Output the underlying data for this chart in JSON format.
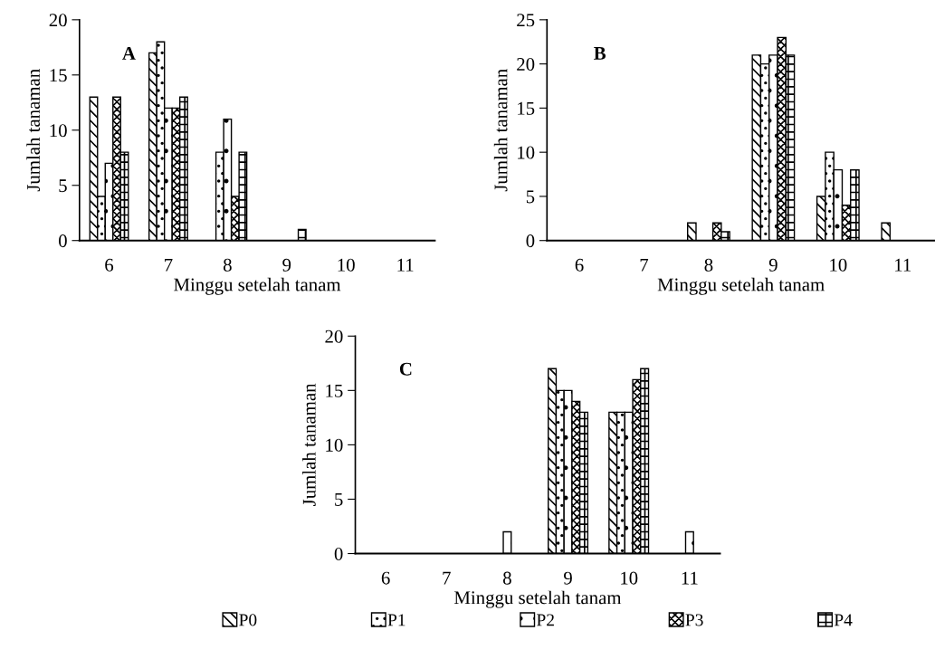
{
  "chart_data": [
    {
      "type": "bar",
      "xlabel": "Minggu setelah tanam",
      "ylabel": "Jumlah tanaman",
      "annotations": [
        "A"
      ],
      "categories": [
        "6",
        "7",
        "8",
        "9",
        "10",
        "11"
      ],
      "ylim": [
        0,
        20
      ],
      "yticks": [
        0,
        5,
        10,
        15,
        20
      ],
      "grid": false,
      "legend": false,
      "series": [
        {
          "color": "#000000",
          "values": [
            13,
            17,
            0,
            0,
            0,
            0
          ]
        },
        {
          "color": "#000000",
          "values": [
            4,
            18,
            8,
            0,
            0,
            0
          ]
        },
        {
          "color": "#000000",
          "values": [
            7,
            12,
            11,
            0,
            0,
            0
          ]
        },
        {
          "color": "#000000",
          "values": [
            13,
            12,
            4,
            0,
            0,
            0
          ]
        },
        {
          "color": "#000000",
          "values": [
            8,
            13,
            8,
            1,
            0,
            0
          ]
        }
      ]
    },
    {
      "type": "bar",
      "xlabel": "Minggu setelah tanam",
      "ylabel": "Jumlah tanaman",
      "annotations": [
        "B"
      ],
      "categories": [
        "6",
        "7",
        "8",
        "9",
        "10",
        "11"
      ],
      "ylim": [
        0,
        25
      ],
      "yticks": [
        0,
        5,
        10,
        15,
        20,
        25
      ],
      "grid": false,
      "legend": false,
      "series": [
        {
          "color": "#000000",
          "values": [
            0,
            0,
            2,
            21,
            5,
            2
          ]
        },
        {
          "color": "#000000",
          "values": [
            0,
            0,
            0,
            20,
            10,
            0
          ]
        },
        {
          "color": "#000000",
          "values": [
            0,
            0,
            0,
            21,
            8,
            0
          ]
        },
        {
          "color": "#000000",
          "values": [
            0,
            0,
            2,
            23,
            4,
            0
          ]
        },
        {
          "color": "#000000",
          "values": [
            0,
            0,
            1,
            21,
            8,
            0
          ]
        }
      ]
    },
    {
      "type": "bar",
      "xlabel": "Minggu setelah tanam",
      "ylabel": "Jumlah tanaman",
      "annotations": [
        "C"
      ],
      "categories": [
        "6",
        "7",
        "8",
        "9",
        "10",
        "11"
      ],
      "ylim": [
        0,
        20
      ],
      "yticks": [
        0,
        5,
        10,
        15,
        20
      ],
      "grid": false,
      "legend": "bottom",
      "series": [
        {
          "name": "P0",
          "color": "#000000",
          "values": [
            0,
            0,
            0,
            17,
            13,
            0
          ]
        },
        {
          "name": "P1",
          "color": "#000000",
          "values": [
            0,
            0,
            0,
            15,
            13,
            0
          ]
        },
        {
          "name": "P2",
          "color": "#000000",
          "values": [
            0,
            0,
            2,
            15,
            13,
            2
          ]
        },
        {
          "name": "P3",
          "color": "#000000",
          "values": [
            0,
            0,
            0,
            14,
            16,
            0
          ]
        },
        {
          "name": "P4",
          "color": "#000000",
          "values": [
            0,
            0,
            0,
            13,
            17,
            0
          ]
        }
      ]
    }
  ]
}
